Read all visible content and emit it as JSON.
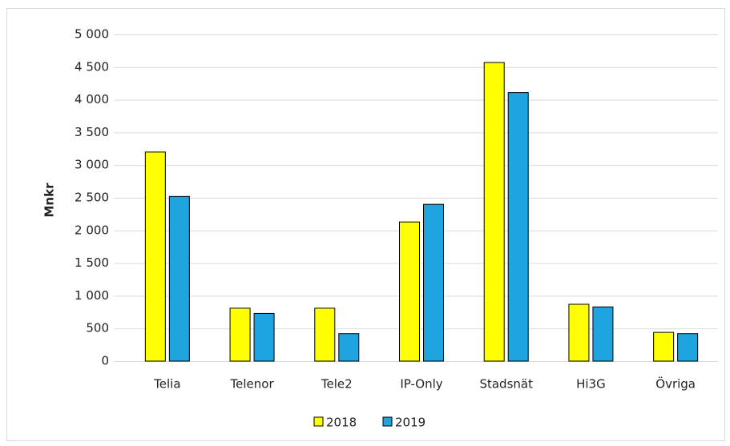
{
  "chart_data": {
    "type": "bar",
    "y_label": "Mnkr",
    "categories": [
      "Telia",
      "Telenor",
      "Tele2",
      "IP-Only",
      "Stadsnät",
      "Hi3G",
      "Övriga"
    ],
    "series": [
      {
        "name": "2018",
        "color": "#ffff00",
        "values": [
          3200,
          810,
          810,
          2130,
          4570,
          870,
          440
        ]
      },
      {
        "name": "2019",
        "color": "#1ea5e0",
        "values": [
          2520,
          730,
          420,
          2400,
          4110,
          830,
          420
        ]
      }
    ],
    "ylim": [
      0,
      5000
    ],
    "yticks": [
      0,
      500,
      {
        "value": 1000,
        "label": "1 000"
      },
      {
        "value": 1500,
        "label": "1 500"
      },
      {
        "value": 2000,
        "label": "2 000"
      },
      {
        "value": 2500,
        "label": "2 500"
      },
      {
        "value": 3000,
        "label": "3 000"
      },
      {
        "value": 3500,
        "label": "3 500"
      },
      {
        "value": 4000,
        "label": "4 000"
      },
      {
        "value": 4500,
        "label": "4 500"
      },
      {
        "value": 5000,
        "label": "5 000"
      }
    ],
    "grid": true,
    "legend": "bottom"
  }
}
